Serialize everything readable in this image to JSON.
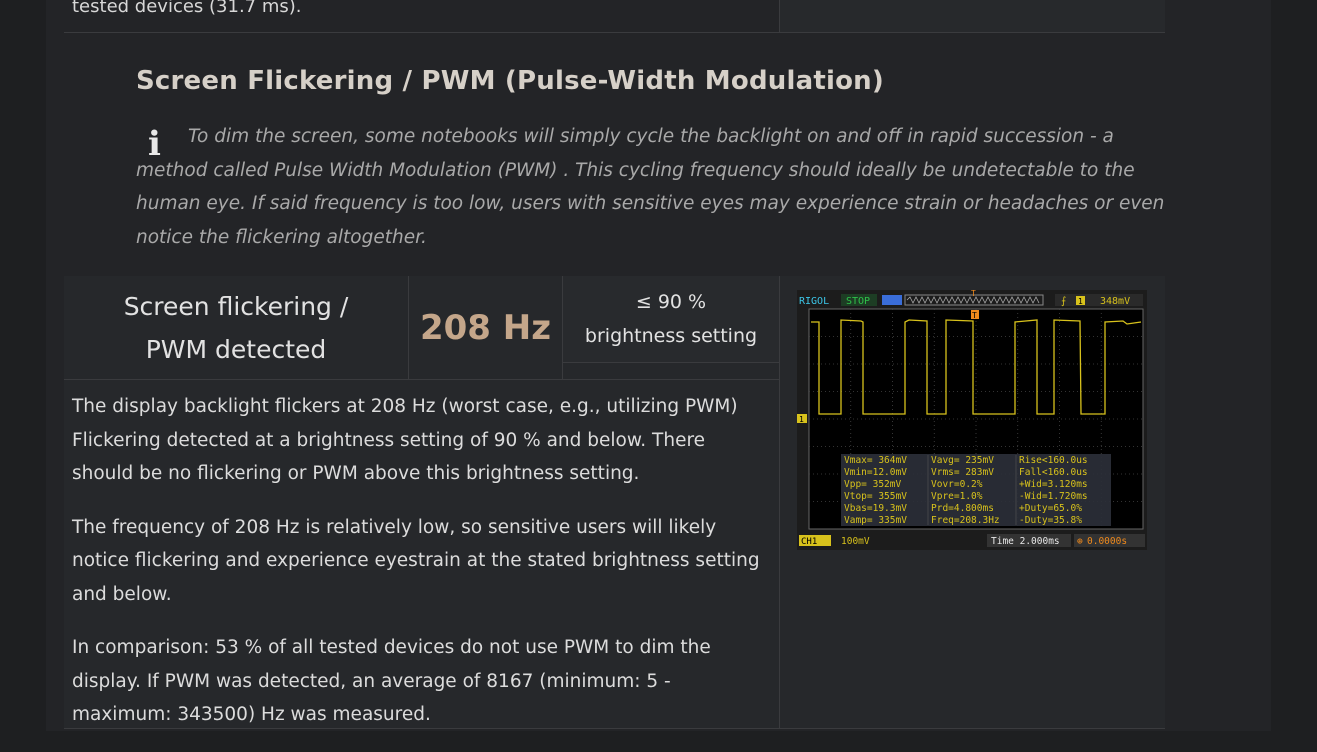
{
  "top_fragment": {
    "text": "tested devices (31.7 ms)."
  },
  "section": {
    "title": "Screen Flickering / PWM (Pulse-Width Modulation)",
    "info_icon": "info-icon",
    "info_text": "To dim the screen, some notebooks will simply cycle the backlight on and off in rapid succession - a method called Pulse Width Modulation (PWM) . This cycling frequency should ideally be undetectable to the human eye. If said frequency is too low, users with sensitive eyes may experience strain or headaches or even notice the flickering altogether."
  },
  "result": {
    "label": "Screen flickering / PWM detected",
    "value": "208 Hz",
    "setting": "≤ 90 % brightness setting",
    "value_color": "#c4a68a"
  },
  "description": {
    "p1_line1": "The display backlight flickers at 208 Hz (worst case, e.g., utilizing PWM)",
    "p1_line2": "Flickering detected at a brightness setting of 90 % and below. There should be no flickering or PWM above this brightness setting.",
    "p2": "The frequency of 208 Hz is relatively low, so sensitive users will likely notice flickering and experience eyestrain at the stated brightness setting and below.",
    "p3": "In comparison: 53 % of all tested devices do not use PWM to dim the display. If PWM was detected, an average of 8167 (minimum: 5 - maximum: 343500) Hz was measured."
  },
  "oscilloscope": {
    "brand": "RIGOL",
    "status": "STOP",
    "trigger_level": "348mV",
    "trigger_marker": "T",
    "channel_marker": "1",
    "measurements": [
      [
        "Vmax= 364mV",
        "Vavg= 235mV",
        "Rise<160.0us"
      ],
      [
        "Vmin=12.0mV",
        "Vrms= 283mV",
        "Fall<160.0us"
      ],
      [
        "Vpp= 352mV",
        "Vovr=0.2%",
        "+Wid=3.120ms"
      ],
      [
        "Vtop= 355mV",
        "Vpre=1.0%",
        "-Wid=1.720ms"
      ],
      [
        "Vbas=19.3mV",
        "Prd=4.800ms",
        "+Duty=65.0%"
      ],
      [
        "Vamp= 335mV",
        "Freq=208.3Hz",
        "-Duty=35.8%"
      ]
    ],
    "ch1_label": "CH1",
    "ch1_scale": "100mV",
    "time_label": "Time 2.000ms",
    "offset": "0.0000s",
    "trace_color": "#d8c21c",
    "status_color": "#2ec24a",
    "brand_color": "#3cc6e8"
  }
}
